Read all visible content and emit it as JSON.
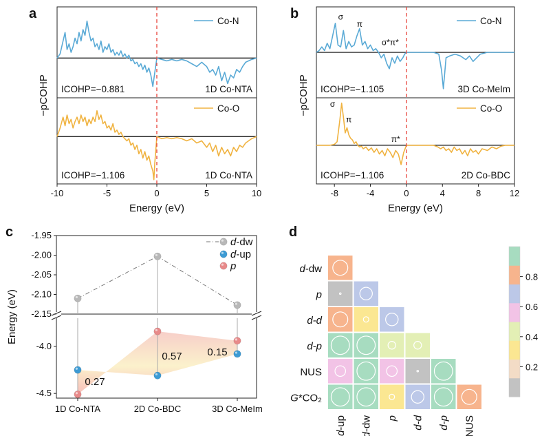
{
  "colors": {
    "co_n": "#5aaad6",
    "co_o": "#f0b341",
    "fermi": "#e8433a",
    "d_dw": "#b8b8b8",
    "d_up": "#3d9bd4",
    "p": "#e88a8a"
  },
  "chart_data": [
    {
      "panel": "a",
      "type": "line",
      "ylabel": "−pCOHP",
      "xlabel": "Energy (eV)",
      "xlim": [
        -10,
        10
      ],
      "xticks": [
        "-10",
        "-5",
        "0",
        "5",
        "10"
      ],
      "fermi_level": 0,
      "subplots": [
        {
          "legend": "Co-N",
          "icohp": "ICOHP=−0.881",
          "structure": "1D Co-NTA",
          "ylim": [
            -1.4,
            1.8
          ],
          "x": [
            -10,
            -9.7,
            -9.4,
            -9.2,
            -9.0,
            -8.8,
            -8.6,
            -8.4,
            -8.2,
            -8.0,
            -7.8,
            -7.6,
            -7.4,
            -7.2,
            -7.0,
            -6.8,
            -6.6,
            -6.4,
            -6.2,
            -6.0,
            -5.8,
            -5.6,
            -5.4,
            -5.2,
            -5.0,
            -4.8,
            -4.6,
            -4.4,
            -4.2,
            -4.0,
            -3.8,
            -3.6,
            -3.4,
            -3.2,
            -3.0,
            -2.8,
            -2.6,
            -2.4,
            -2.2,
            -2.0,
            -1.8,
            -1.6,
            -1.4,
            -1.2,
            -1.0,
            -0.8,
            -0.6,
            -0.4,
            -0.2,
            0,
            0.5,
            1.0,
            1.5,
            2.0,
            2.5,
            3.0,
            3.5,
            4.0,
            4.5,
            5.0,
            5.3,
            5.6,
            5.9,
            6.2,
            6.5,
            6.8,
            7.1,
            7.4,
            7.7,
            8.0,
            8.3,
            8.6,
            8.9,
            9.2,
            9.5,
            10
          ],
          "y": [
            0,
            0.15,
            0.6,
            0.9,
            0.3,
            0.5,
            0.2,
            0.4,
            0.7,
            0.5,
            0.9,
            0.6,
            1.0,
            0.8,
            1.3,
            0.9,
            0.6,
            0.7,
            0.4,
            0.5,
            0.3,
            0.6,
            0.2,
            0.4,
            0.3,
            0.5,
            0.2,
            0.3,
            0.1,
            0.2,
            0.1,
            0.25,
            0.05,
            0.15,
            0.0,
            0.1,
            -0.1,
            -0.05,
            -0.2,
            -0.15,
            -0.3,
            -0.2,
            -0.4,
            -0.25,
            -0.5,
            -0.35,
            -0.6,
            -1.0,
            -0.5,
            0,
            -0.05,
            -0.1,
            -0.05,
            -0.1,
            -0.05,
            -0.1,
            -0.2,
            -0.3,
            -0.15,
            -0.3,
            -0.5,
            -0.4,
            -0.6,
            -0.3,
            -0.8,
            -0.5,
            -0.9,
            -0.6,
            -0.7,
            -0.4,
            -0.5,
            -0.3,
            -0.15,
            -0.1,
            -0.05,
            0
          ]
        },
        {
          "legend": "Co-O",
          "icohp": "ICOHP=−1.106",
          "structure": "1D Co-NTA",
          "ylim": [
            -2.2,
            1.8
          ],
          "x": [
            -10,
            -9.7,
            -9.4,
            -9.2,
            -9.0,
            -8.8,
            -8.6,
            -8.4,
            -8.2,
            -8.0,
            -7.8,
            -7.6,
            -7.4,
            -7.2,
            -7.0,
            -6.8,
            -6.6,
            -6.4,
            -6.2,
            -6.0,
            -5.8,
            -5.6,
            -5.4,
            -5.2,
            -5.0,
            -4.8,
            -4.6,
            -4.4,
            -4.2,
            -4.0,
            -3.8,
            -3.6,
            -3.4,
            -3.2,
            -3.0,
            -2.8,
            -2.6,
            -2.4,
            -2.2,
            -2.0,
            -1.8,
            -1.6,
            -1.4,
            -1.2,
            -1.0,
            -0.8,
            -0.6,
            -0.4,
            -0.3,
            -0.2,
            -0.1,
            0,
            0.5,
            1.0,
            1.5,
            2.0,
            2.5,
            3.0,
            3.5,
            4.0,
            4.5,
            5.0,
            5.3,
            5.6,
            5.9,
            6.2,
            6.5,
            6.8,
            7.1,
            7.4,
            7.7,
            8.0,
            8.3,
            8.6,
            8.9,
            9.2,
            9.5,
            10
          ],
          "y": [
            0,
            0.4,
            0.9,
            0.5,
            1.0,
            0.6,
            0.8,
            0.4,
            0.7,
            0.9,
            0.6,
            1.0,
            0.7,
            0.9,
            0.5,
            0.8,
            0.6,
            0.9,
            0.7,
            1.2,
            0.8,
            1.0,
            0.6,
            0.7,
            0.4,
            0.5,
            0.3,
            0.6,
            0.2,
            0.3,
            0.1,
            0.2,
            0.0,
            -0.1,
            -0.2,
            -0.1,
            -0.4,
            -0.3,
            -0.6,
            -0.4,
            -0.8,
            -0.6,
            -1.0,
            -0.7,
            -1.1,
            -0.9,
            -1.3,
            -1.6,
            -2.0,
            -1.2,
            -0.6,
            0,
            -0.1,
            -0.05,
            -0.1,
            -0.05,
            -0.1,
            -0.2,
            -0.1,
            -0.3,
            -0.2,
            -0.5,
            -0.3,
            -0.7,
            -0.4,
            -0.9,
            -0.5,
            -0.8,
            -0.6,
            -0.9,
            -0.5,
            -0.7,
            -0.4,
            -0.5,
            -0.3,
            -0.2,
            -0.1,
            0
          ]
        }
      ]
    },
    {
      "panel": "b",
      "type": "line",
      "ylabel": "−pCOHP",
      "xlabel": "Energy (eV)",
      "xlim": [
        -10,
        12
      ],
      "xticks": [
        "-8",
        "-4",
        "0",
        "4",
        "8",
        "12"
      ],
      "fermi_level": 0,
      "subplots": [
        {
          "legend": "Co-N",
          "icohp": "ICOHP=−1.105",
          "structure": "3D Co-MeIm",
          "ylim": [
            -2.5,
            2.5
          ],
          "annotations": [
            {
              "text": "σ",
              "x": -7.3,
              "y": 1.8
            },
            {
              "text": "π",
              "x": -5.2,
              "y": 1.4
            },
            {
              "text": "σ*π*",
              "x": -1.8,
              "y": 0.4
            }
          ],
          "x": [
            -10,
            -9.7,
            -9.4,
            -9.1,
            -8.8,
            -8.5,
            -8.2,
            -7.9,
            -7.6,
            -7.3,
            -7.0,
            -6.7,
            -6.4,
            -6.1,
            -5.8,
            -5.5,
            -5.2,
            -4.9,
            -4.6,
            -4.3,
            -4.0,
            -3.7,
            -3.4,
            -3.1,
            -2.8,
            -2.5,
            -2.2,
            -1.9,
            -1.6,
            -1.3,
            -1.0,
            -0.7,
            -0.4,
            -0.2,
            0,
            1,
            2,
            3,
            3.6,
            3.9,
            4.1,
            4.4,
            4.8,
            5.4,
            6,
            6.6,
            7,
            7.4,
            7.8,
            8.2,
            9,
            10,
            11,
            12
          ],
          "y": [
            0,
            0.1,
            0.3,
            0.1,
            0.5,
            0.2,
            0.9,
            1.6,
            0.4,
            0.3,
            1.2,
            0.2,
            0.6,
            0.3,
            0.4,
            0.9,
            1.3,
            0.4,
            0.6,
            0.2,
            0.4,
            0.1,
            0.2,
            0.0,
            -0.3,
            -0.1,
            -0.6,
            -0.9,
            -0.3,
            -0.6,
            -0.2,
            -0.5,
            -0.3,
            -0.1,
            0,
            0,
            0,
            0,
            -0.1,
            -1.0,
            -2.0,
            -0.3,
            -0.2,
            -0.1,
            -0.2,
            -0.4,
            -0.2,
            -0.5,
            -0.3,
            -0.1,
            0,
            0,
            0,
            0
          ]
        },
        {
          "legend": "Co-O",
          "icohp": "ICOHP=−1.106",
          "structure": "2D Co-BDC",
          "ylim": [
            -2.2,
            2.7
          ],
          "annotations": [
            {
              "text": "σ",
              "x": -8.2,
              "y": 2.2
            },
            {
              "text": "π",
              "x": -6.4,
              "y": 1.3
            },
            {
              "text": "π*",
              "x": -1.2,
              "y": 0.2
            }
          ],
          "x": [
            -10,
            -9.5,
            -9,
            -8.5,
            -8.0,
            -7.7,
            -7.4,
            -7.2,
            -7.0,
            -6.8,
            -6.6,
            -6.4,
            -6.2,
            -6.0,
            -5.8,
            -5.6,
            -5.4,
            -5.2,
            -5.0,
            -4.8,
            -4.5,
            -4.2,
            -3.9,
            -3.6,
            -3.3,
            -3.0,
            -2.7,
            -2.4,
            -2.1,
            -1.8,
            -1.5,
            -1.2,
            -0.9,
            -0.6,
            -0.3,
            0,
            1,
            2,
            3,
            3.5,
            3.8,
            4.1,
            4.4,
            4.7,
            5.0,
            5.3,
            5.6,
            5.9,
            6.2,
            6.5,
            6.8,
            7.1,
            7.4,
            7.7,
            8.0,
            8.4,
            9,
            9.5,
            10,
            10.5,
            11,
            12
          ],
          "y": [
            0,
            0,
            0,
            0,
            0.05,
            0.2,
            1.4,
            2.4,
            1.6,
            0.7,
            1.0,
            0.6,
            0.4,
            0.3,
            0.1,
            0.2,
            0.0,
            -0.1,
            -0.05,
            -0.2,
            -0.1,
            -0.3,
            -0.15,
            -0.4,
            -0.2,
            -0.5,
            -0.3,
            -0.6,
            -0.2,
            -0.4,
            -0.7,
            -0.3,
            -0.5,
            -1.1,
            -0.4,
            0,
            0,
            0,
            0,
            -0.1,
            -0.2,
            -0.1,
            -0.3,
            -0.2,
            -0.4,
            -0.1,
            -0.3,
            -0.2,
            -0.5,
            -0.3,
            -0.6,
            -0.2,
            -0.4,
            -0.3,
            -0.5,
            -0.2,
            -0.3,
            -0.1,
            -0.2,
            -0.05,
            0,
            0
          ]
        }
      ]
    },
    {
      "panel": "c",
      "type": "scatter",
      "ylabel": "Energy (eV)",
      "categories": [
        "1D Co-NTA",
        "2D Co-BDC",
        "3D Co-MeIm"
      ],
      "top_ylim": [
        -2.15,
        -1.95
      ],
      "top_yticks": [
        "-1.95",
        "-2.00",
        "-2.05",
        "-2.10",
        "-2.15"
      ],
      "bottom_ylim": [
        -4.55,
        -3.7
      ],
      "bottom_yticks": [
        "-4.0",
        "-4.5"
      ],
      "legend": [
        {
          "label": "d",
          "suffix": "-dw"
        },
        {
          "label": "d",
          "suffix": "-up"
        },
        {
          "label": "p",
          "suffix": ""
        }
      ],
      "series": [
        {
          "name": "d-dw",
          "values": [
            -2.11,
            -2.003,
            -2.127
          ]
        },
        {
          "name": "d-up",
          "values": [
            -4.25,
            -4.31,
            -4.08
          ]
        },
        {
          "name": "p",
          "values": [
            -4.51,
            -3.84,
            -3.94
          ]
        }
      ],
      "gap_labels": [
        "0.27",
        "0.57",
        "0.15"
      ]
    },
    {
      "panel": "d",
      "type": "heatmap",
      "rows": [
        {
          "base": "d",
          "suffix": "-dw",
          "italic": true
        },
        {
          "base": "p",
          "suffix": "",
          "italic": true
        },
        {
          "base": "d",
          "suffix": "-d",
          "italic": true,
          "suffix_italic": true
        },
        {
          "base": "d",
          "suffix": "-p",
          "italic": true,
          "suffix_italic": true
        },
        {
          "base": "NUS",
          "suffix": "",
          "italic": false
        },
        {
          "base": "G",
          "suffix": "*CO₂",
          "italic": true
        }
      ],
      "columns": [
        {
          "base": "d",
          "suffix": "-up",
          "italic": true
        },
        {
          "base": "d",
          "suffix": "-dw",
          "italic": true
        },
        {
          "base": "p",
          "suffix": "",
          "italic": true
        },
        {
          "base": "d",
          "suffix": "-d",
          "italic": true,
          "suffix_italic": true
        },
        {
          "base": "d",
          "suffix": "-p",
          "italic": true,
          "suffix_italic": true
        },
        {
          "base": "NUS",
          "suffix": "",
          "italic": false
        }
      ],
      "values": [
        [
          0.78
        ],
        [
          0.02,
          0.65
        ],
        [
          0.78,
          0.28,
          0.65
        ],
        [
          0.95,
          0.95,
          0.4,
          0.4
        ],
        [
          0.55,
          0.95,
          0.55,
          0.02,
          0.95
        ],
        [
          0.95,
          0.95,
          0.28,
          0.65,
          0.95,
          0.78
        ]
      ],
      "colorbar": {
        "ticks": [
          "0.2",
          "0.4",
          "0.6",
          "0.8"
        ],
        "bands": [
          "#c2c2c2",
          "#f3dcc6",
          "#fbe792",
          "#e3efb5",
          "#f2c3e6",
          "#bcc8e8",
          "#f7b48d",
          "#a7dcc0"
        ]
      }
    }
  ]
}
